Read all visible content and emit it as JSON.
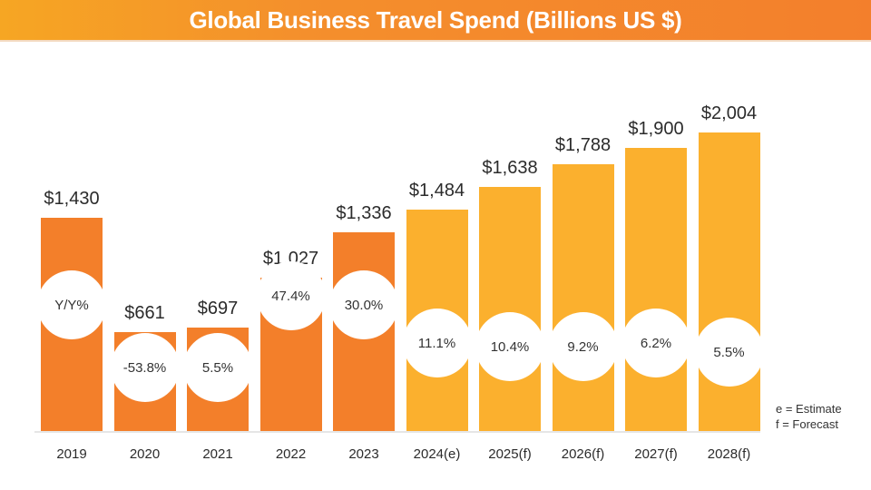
{
  "header": {
    "title": "Global Business Travel Spend (Billions US $)"
  },
  "legend": {
    "line1": "e = Estimate",
    "line2": "f = Forecast"
  },
  "colors": {
    "actual": "#f37f2a",
    "projected": "#fbb02e",
    "banner_start": "#f6a623",
    "banner_end": "#f37f2c"
  },
  "chart_data": {
    "type": "bar",
    "title": "Global Business Travel Spend (Billions US $)",
    "xlabel": "",
    "ylabel": "Billions US $",
    "categories": [
      "2019",
      "2020",
      "2021",
      "2022",
      "2023",
      "2024(e)",
      "2025(f)",
      "2026(f)",
      "2027(f)",
      "2028(f)"
    ],
    "values": [
      1430,
      661,
      697,
      1027,
      1336,
      1484,
      1638,
      1788,
      1900,
      2004
    ],
    "value_labels": [
      "$1,430",
      "$661",
      "$697",
      "$1,027",
      "$1,336",
      "$1,484",
      "$1,638",
      "$1,788",
      "$1,900",
      "$2,004"
    ],
    "yoy_labels": [
      "Y/Y%",
      "-53.8%",
      "5.5%",
      "47.4%",
      "30.0%",
      "11.1%",
      "10.4%",
      "9.2%",
      "6.2%",
      "5.5%"
    ],
    "series_type": [
      "actual",
      "actual",
      "actual",
      "actual",
      "actual",
      "estimate",
      "forecast",
      "forecast",
      "forecast",
      "forecast"
    ],
    "annotations": [
      "e = Estimate",
      "f = Forecast"
    ],
    "grid": false,
    "legend_position": "bottom-right"
  }
}
